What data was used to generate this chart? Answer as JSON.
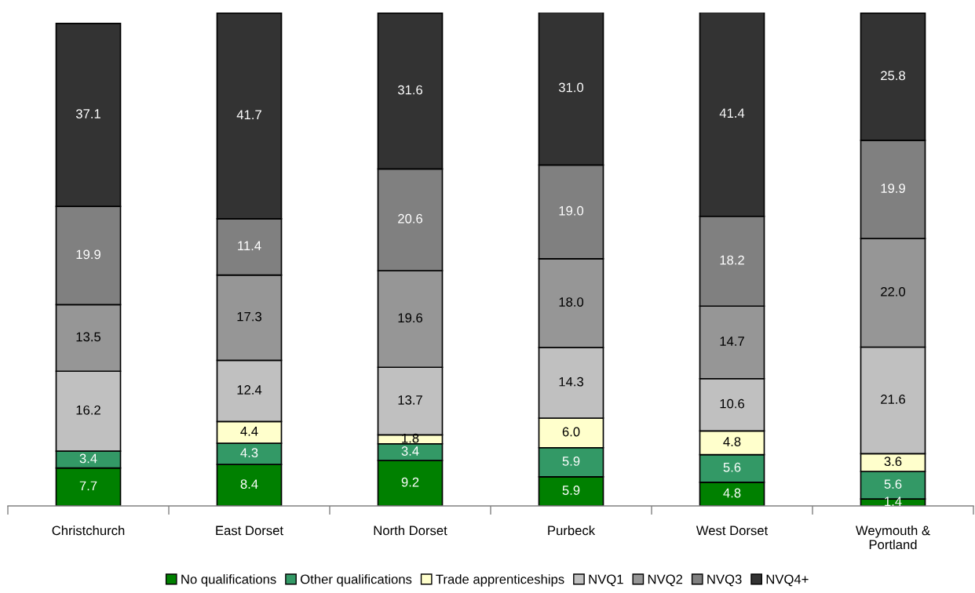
{
  "chart_data": {
    "type": "bar",
    "stacked": true,
    "categories": [
      "Christchurch",
      "East Dorset",
      "North Dorset",
      "Purbeck",
      "West Dorset",
      "Weymouth & Portland"
    ],
    "series": [
      {
        "name": "No qualifications",
        "color": "#008000",
        "values": [
          7.7,
          8.4,
          9.2,
          5.9,
          4.8,
          1.4
        ],
        "value_labels": [
          "7.7",
          "8.4",
          "9.2",
          "5.9",
          "4.8",
          "1.4"
        ]
      },
      {
        "name": "Other qualifications",
        "color": "#339966",
        "values": [
          3.4,
          4.3,
          3.4,
          5.9,
          5.6,
          5.6
        ],
        "value_labels": [
          "3.4",
          "4.3",
          "3.4",
          "5.9",
          "5.6",
          "5.6"
        ]
      },
      {
        "name": "Trade apprenticeships",
        "color": "#ffffcc",
        "values": [
          null,
          4.4,
          1.8,
          6.0,
          4.8,
          3.6
        ],
        "value_labels": [
          null,
          "4.4",
          "1.8",
          "6.0",
          "4.8",
          "3.6"
        ]
      },
      {
        "name": "NVQ1",
        "color": "#c0c0c0",
        "values": [
          16.2,
          12.4,
          13.7,
          14.3,
          10.6,
          21.6
        ],
        "value_labels": [
          "16.2",
          "12.4",
          "13.7",
          "14.3",
          "10.6",
          "21.6"
        ]
      },
      {
        "name": "NVQ2",
        "color": "#969696",
        "values": [
          13.5,
          17.3,
          19.6,
          18.0,
          14.7,
          22.0
        ],
        "value_labels": [
          "13.5",
          "17.3",
          "19.6",
          "18.0",
          "14.7",
          "22.0"
        ]
      },
      {
        "name": "NVQ3",
        "color": "#808080",
        "values": [
          19.9,
          11.4,
          20.6,
          19.0,
          18.2,
          19.9
        ],
        "value_labels": [
          "19.9",
          "11.4",
          "20.6",
          "19.0",
          "18.2",
          "19.9"
        ]
      },
      {
        "name": "NVQ4+",
        "color": "#333333",
        "values": [
          37.1,
          41.7,
          31.6,
          31.0,
          41.4,
          25.8
        ],
        "value_labels": [
          "37.1",
          "41.7",
          "31.6",
          "31.0",
          "41.4",
          "25.8"
        ]
      }
    ],
    "ylim": [
      0,
      100
    ],
    "tick_labels": "x",
    "legend": "bottom"
  }
}
